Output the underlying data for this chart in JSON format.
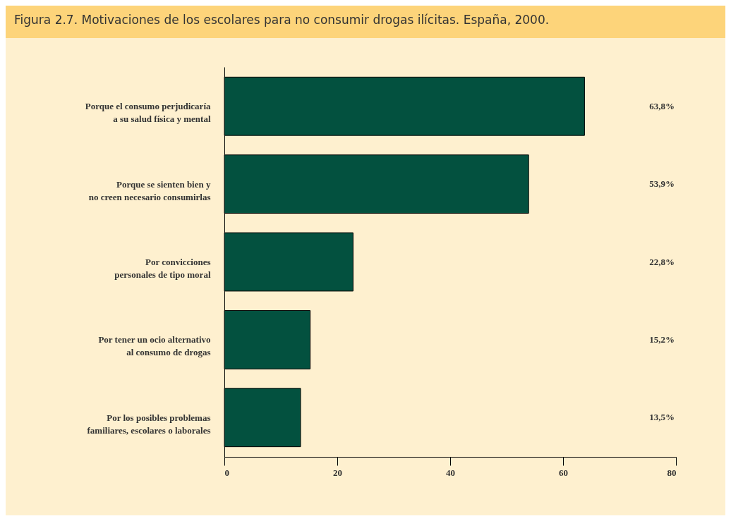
{
  "chart_data": {
    "type": "bar",
    "orientation": "horizontal",
    "title": "Figura 2.7. Motivaciones de los escolares para no consumir drogas ilícitas. España, 2000.",
    "categories": [
      "Porque el consumo perjudicaría\na su salud física y mental",
      "Porque se sienten bien y\nno creen necesario consumirlas",
      "Por convicciones\npersonales de tipo moral",
      "Por tener un ocio alternativo\nal consumo de drogas",
      "Por los posibles problemas\nfamiliares, escolares o laborales"
    ],
    "values": [
      63.8,
      53.9,
      22.8,
      15.2,
      13.5
    ],
    "value_labels": [
      "63,8%",
      "53,9%",
      "22,8%",
      "15,2%",
      "13,5%"
    ],
    "color": "#03513f",
    "xlim": [
      0,
      80
    ],
    "xticks": [
      0,
      20,
      40,
      60,
      80
    ],
    "grid": false
  }
}
